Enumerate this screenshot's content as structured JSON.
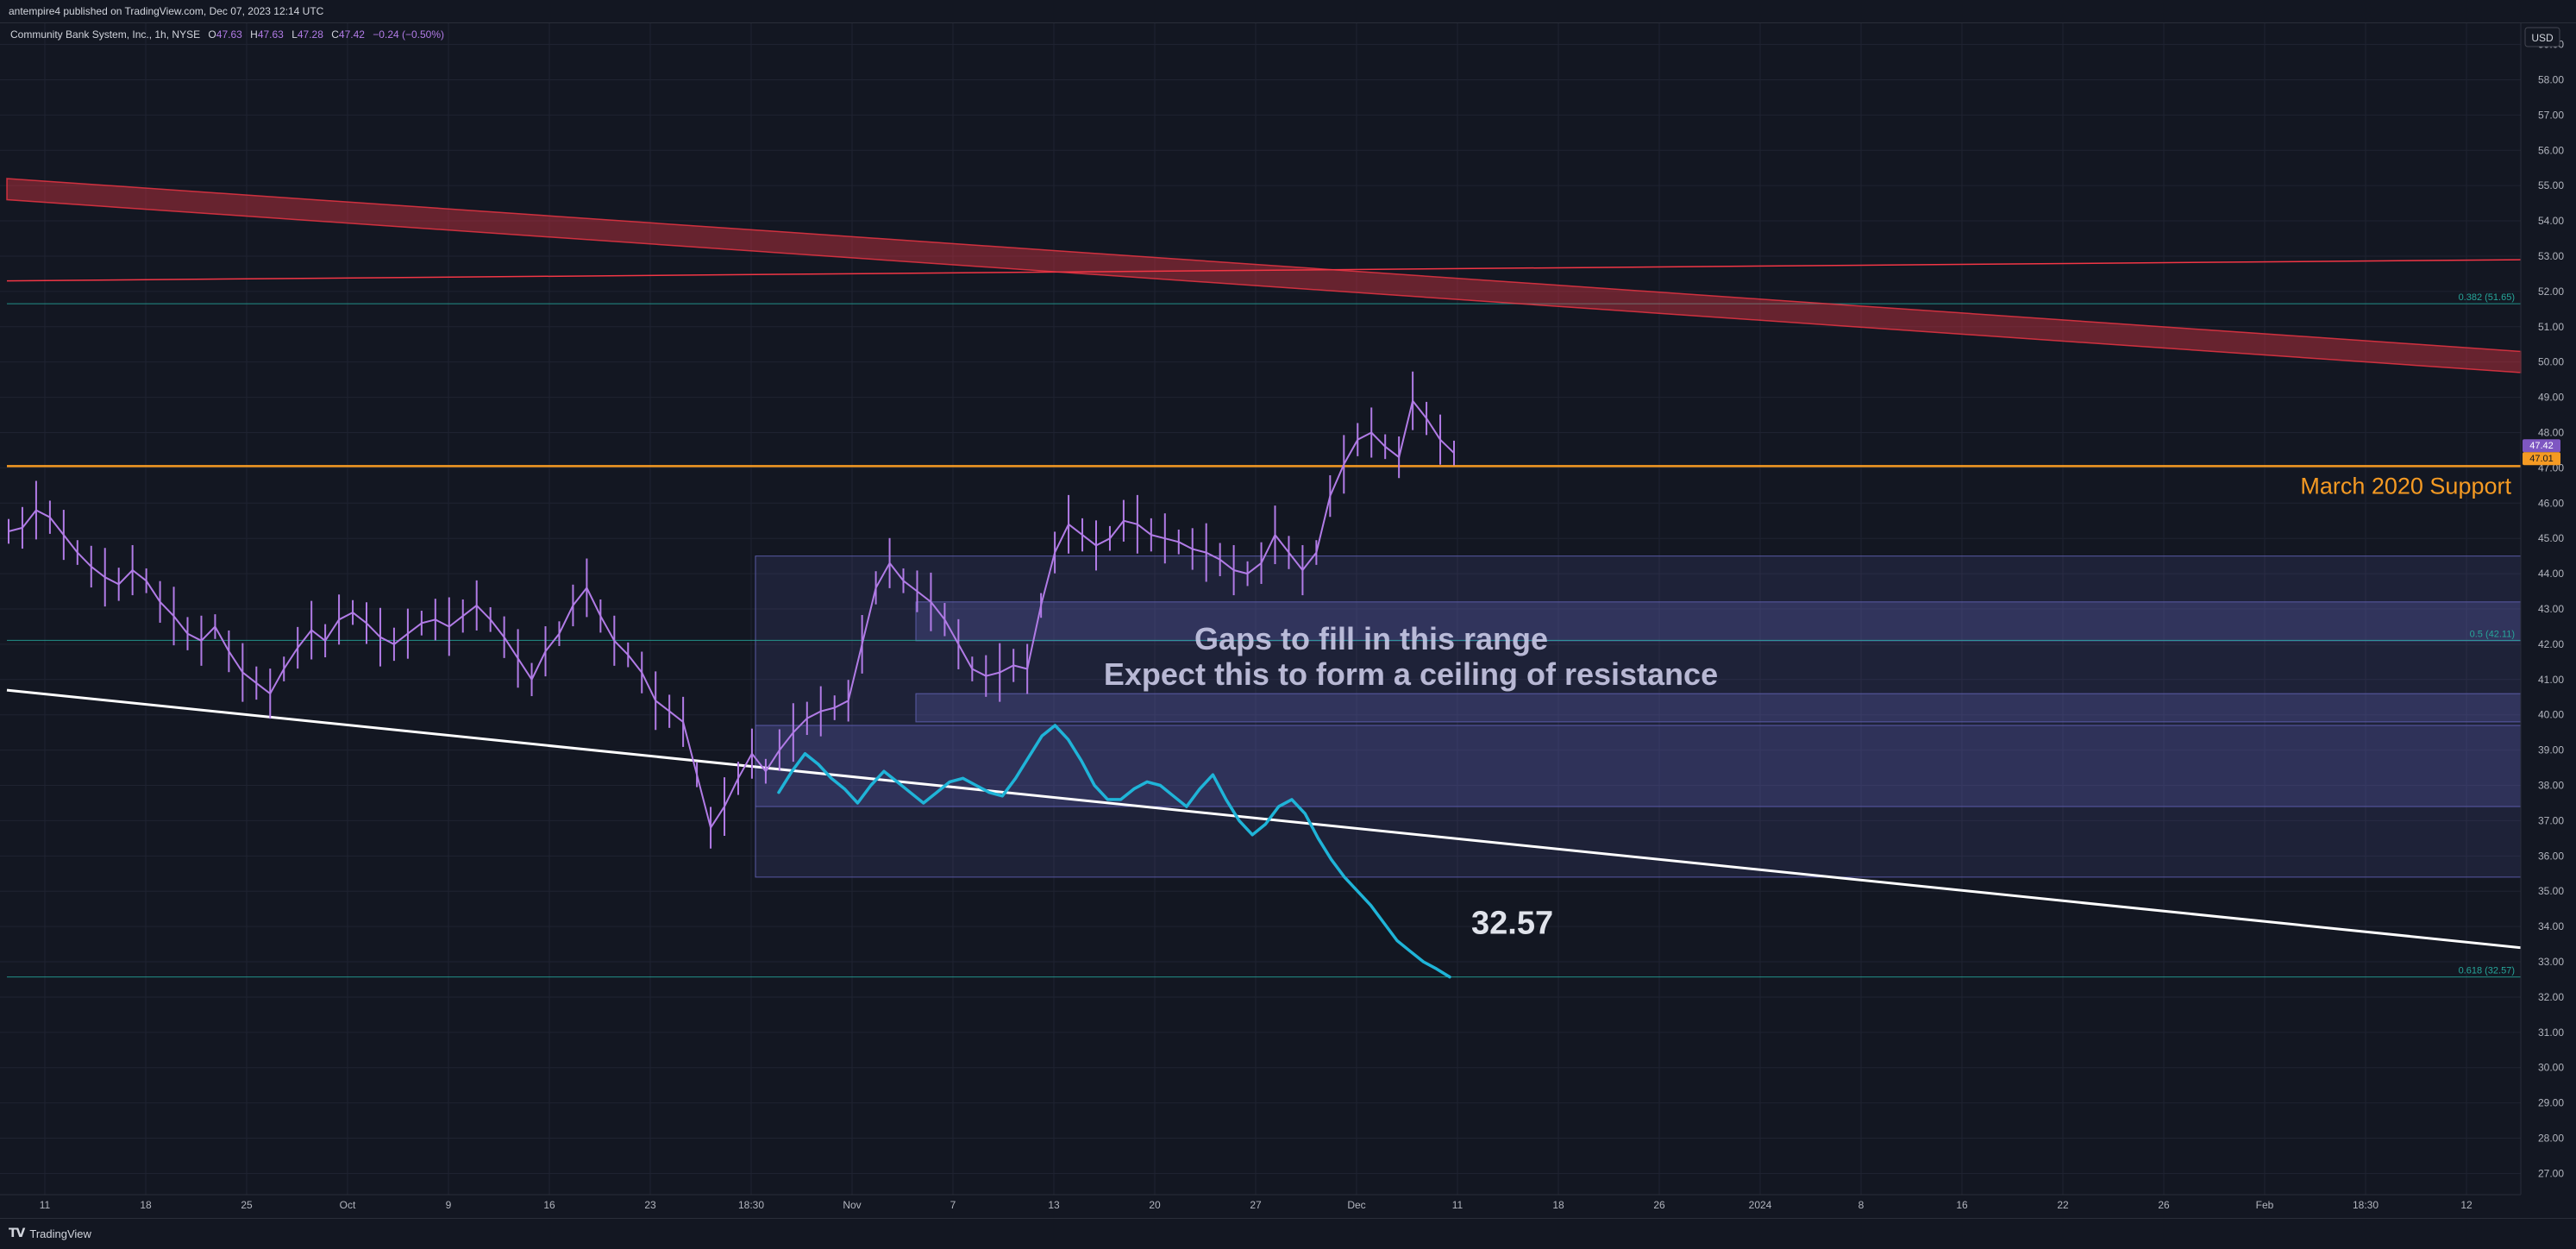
{
  "header": {
    "published": "antempire4 published on TradingView.com, Dec 07, 2023 12:14 UTC"
  },
  "footer": {
    "logo_text": "TradingView",
    "logo_icon": "tradingview-logo-icon"
  },
  "legend": {
    "symbol": "Community Bank System, Inc., 1h, NYSE",
    "o_label": "O",
    "o": "47.63",
    "h_label": "H",
    "h": "47.63",
    "l_label": "L",
    "l": "47.28",
    "c_label": "C",
    "c": "47.42",
    "change": "−0.24 (−0.50%)"
  },
  "colors": {
    "background": "#131722",
    "grid": "#1f2331",
    "candle": "#b17be6",
    "support": "#f59a23",
    "resistance": "#f23645",
    "fib": "#26a69a",
    "box": "#5f5fb0",
    "projection": "#1fb4d8",
    "trendline": "#ffffff",
    "price_tag": "#7e57c2"
  },
  "chart_data": {
    "type": "line",
    "title": "",
    "currency": "USD",
    "ylim": [
      26.4,
      59.6
    ],
    "price_ticks": [
      "59.00",
      "58.00",
      "57.00",
      "56.00",
      "55.00",
      "54.00",
      "53.00",
      "52.00",
      "51.00",
      "50.00",
      "49.00",
      "48.00",
      "47.00",
      "46.00",
      "45.00",
      "44.00",
      "43.00",
      "42.00",
      "41.00",
      "40.00",
      "39.00",
      "38.00",
      "37.00",
      "36.00",
      "35.00",
      "34.00",
      "33.00",
      "32.00",
      "31.00",
      "30.00",
      "29.00",
      "28.00",
      "27.00"
    ],
    "time_labels": [
      "11",
      "18",
      "25",
      "Oct",
      "9",
      "16",
      "23",
      "18:30",
      "Nov",
      "7",
      "13",
      "20",
      "27",
      "Dec",
      "11",
      "18",
      "26",
      "2024",
      "8",
      "16",
      "22",
      "26",
      "Feb",
      "18:30",
      "12"
    ],
    "last_price": "47.42",
    "second_price": "47.01",
    "price_series": {
      "name": "",
      "values": [
        45.2,
        45.3,
        45.8,
        45.6,
        45.1,
        44.6,
        44.2,
        43.9,
        43.7,
        44.1,
        43.8,
        43.2,
        42.8,
        42.3,
        42.1,
        42.5,
        41.8,
        41.2,
        40.9,
        40.6,
        41.3,
        41.9,
        42.4,
        42.1,
        42.7,
        42.9,
        42.6,
        42.2,
        42.0,
        42.3,
        42.6,
        42.7,
        42.5,
        42.8,
        43.1,
        42.7,
        42.2,
        41.6,
        41.0,
        41.8,
        42.3,
        43.1,
        43.6,
        42.8,
        42.1,
        41.7,
        41.2,
        40.4,
        40.1,
        39.8,
        38.3,
        36.8,
        37.4,
        38.2,
        38.9,
        38.4,
        39.0,
        39.5,
        39.9,
        40.1,
        40.2,
        40.4,
        42.0,
        43.6,
        44.3,
        43.8,
        43.5,
        43.2,
        42.7,
        42.0,
        41.3,
        41.1,
        41.2,
        41.4,
        41.3,
        43.1,
        44.6,
        45.4,
        45.1,
        44.8,
        45.0,
        45.5,
        45.4,
        45.1,
        45.0,
        44.9,
        44.7,
        44.6,
        44.4,
        44.1,
        44.0,
        44.3,
        45.1,
        44.6,
        44.1,
        44.6,
        46.2,
        47.1,
        47.8,
        48.0,
        47.6,
        47.3,
        48.9,
        48.4,
        47.8,
        47.42
      ]
    },
    "resistance_channel": {
      "start": [
        55.2,
        54.6
      ],
      "end": [
        50.3,
        49.7
      ]
    },
    "resistance_line": {
      "start": 52.3,
      "end": 52.9
    },
    "trendline": {
      "start": 40.7,
      "end": 33.4
    },
    "projection": {
      "values": [
        37.8,
        38.4,
        38.9,
        38.6,
        38.2,
        37.9,
        37.5,
        38.0,
        38.4,
        38.1,
        37.8,
        37.5,
        37.8,
        38.1,
        38.2,
        38.0,
        37.8,
        37.7,
        38.2,
        38.8,
        39.4,
        39.7,
        39.3,
        38.7,
        38.0,
        37.6,
        37.6,
        37.9,
        38.1,
        38.0,
        37.7,
        37.4,
        37.9,
        38.3,
        37.6,
        37.0,
        36.6,
        36.9,
        37.4,
        37.6,
        37.2,
        36.5,
        35.9,
        35.4,
        35.0,
        34.6,
        34.1,
        33.6,
        33.3,
        33.0,
        32.8,
        32.57
      ]
    },
    "labels": {
      "support": "March 2020 Support",
      "gaps": "Gaps to fill in this range",
      "ceiling": "Expect this to form a ceiling of resistance",
      "target": "32.57"
    },
    "fib_levels": [
      {
        "label": "0.382 (51.65)",
        "price": 51.65
      },
      {
        "label": "0.5 (42.11)",
        "price": 42.11
      },
      {
        "label": "0.618 (32.57)",
        "price": 32.57
      }
    ],
    "support_level": 47.05,
    "boxes": [
      {
        "price_top": 44.5,
        "price_bottom": 35.4
      },
      {
        "price_top": 43.2,
        "price_bottom": 42.1
      },
      {
        "price_top": 40.6,
        "price_bottom": 39.8
      },
      {
        "price_top": 39.7,
        "price_bottom": 37.4
      }
    ]
  }
}
